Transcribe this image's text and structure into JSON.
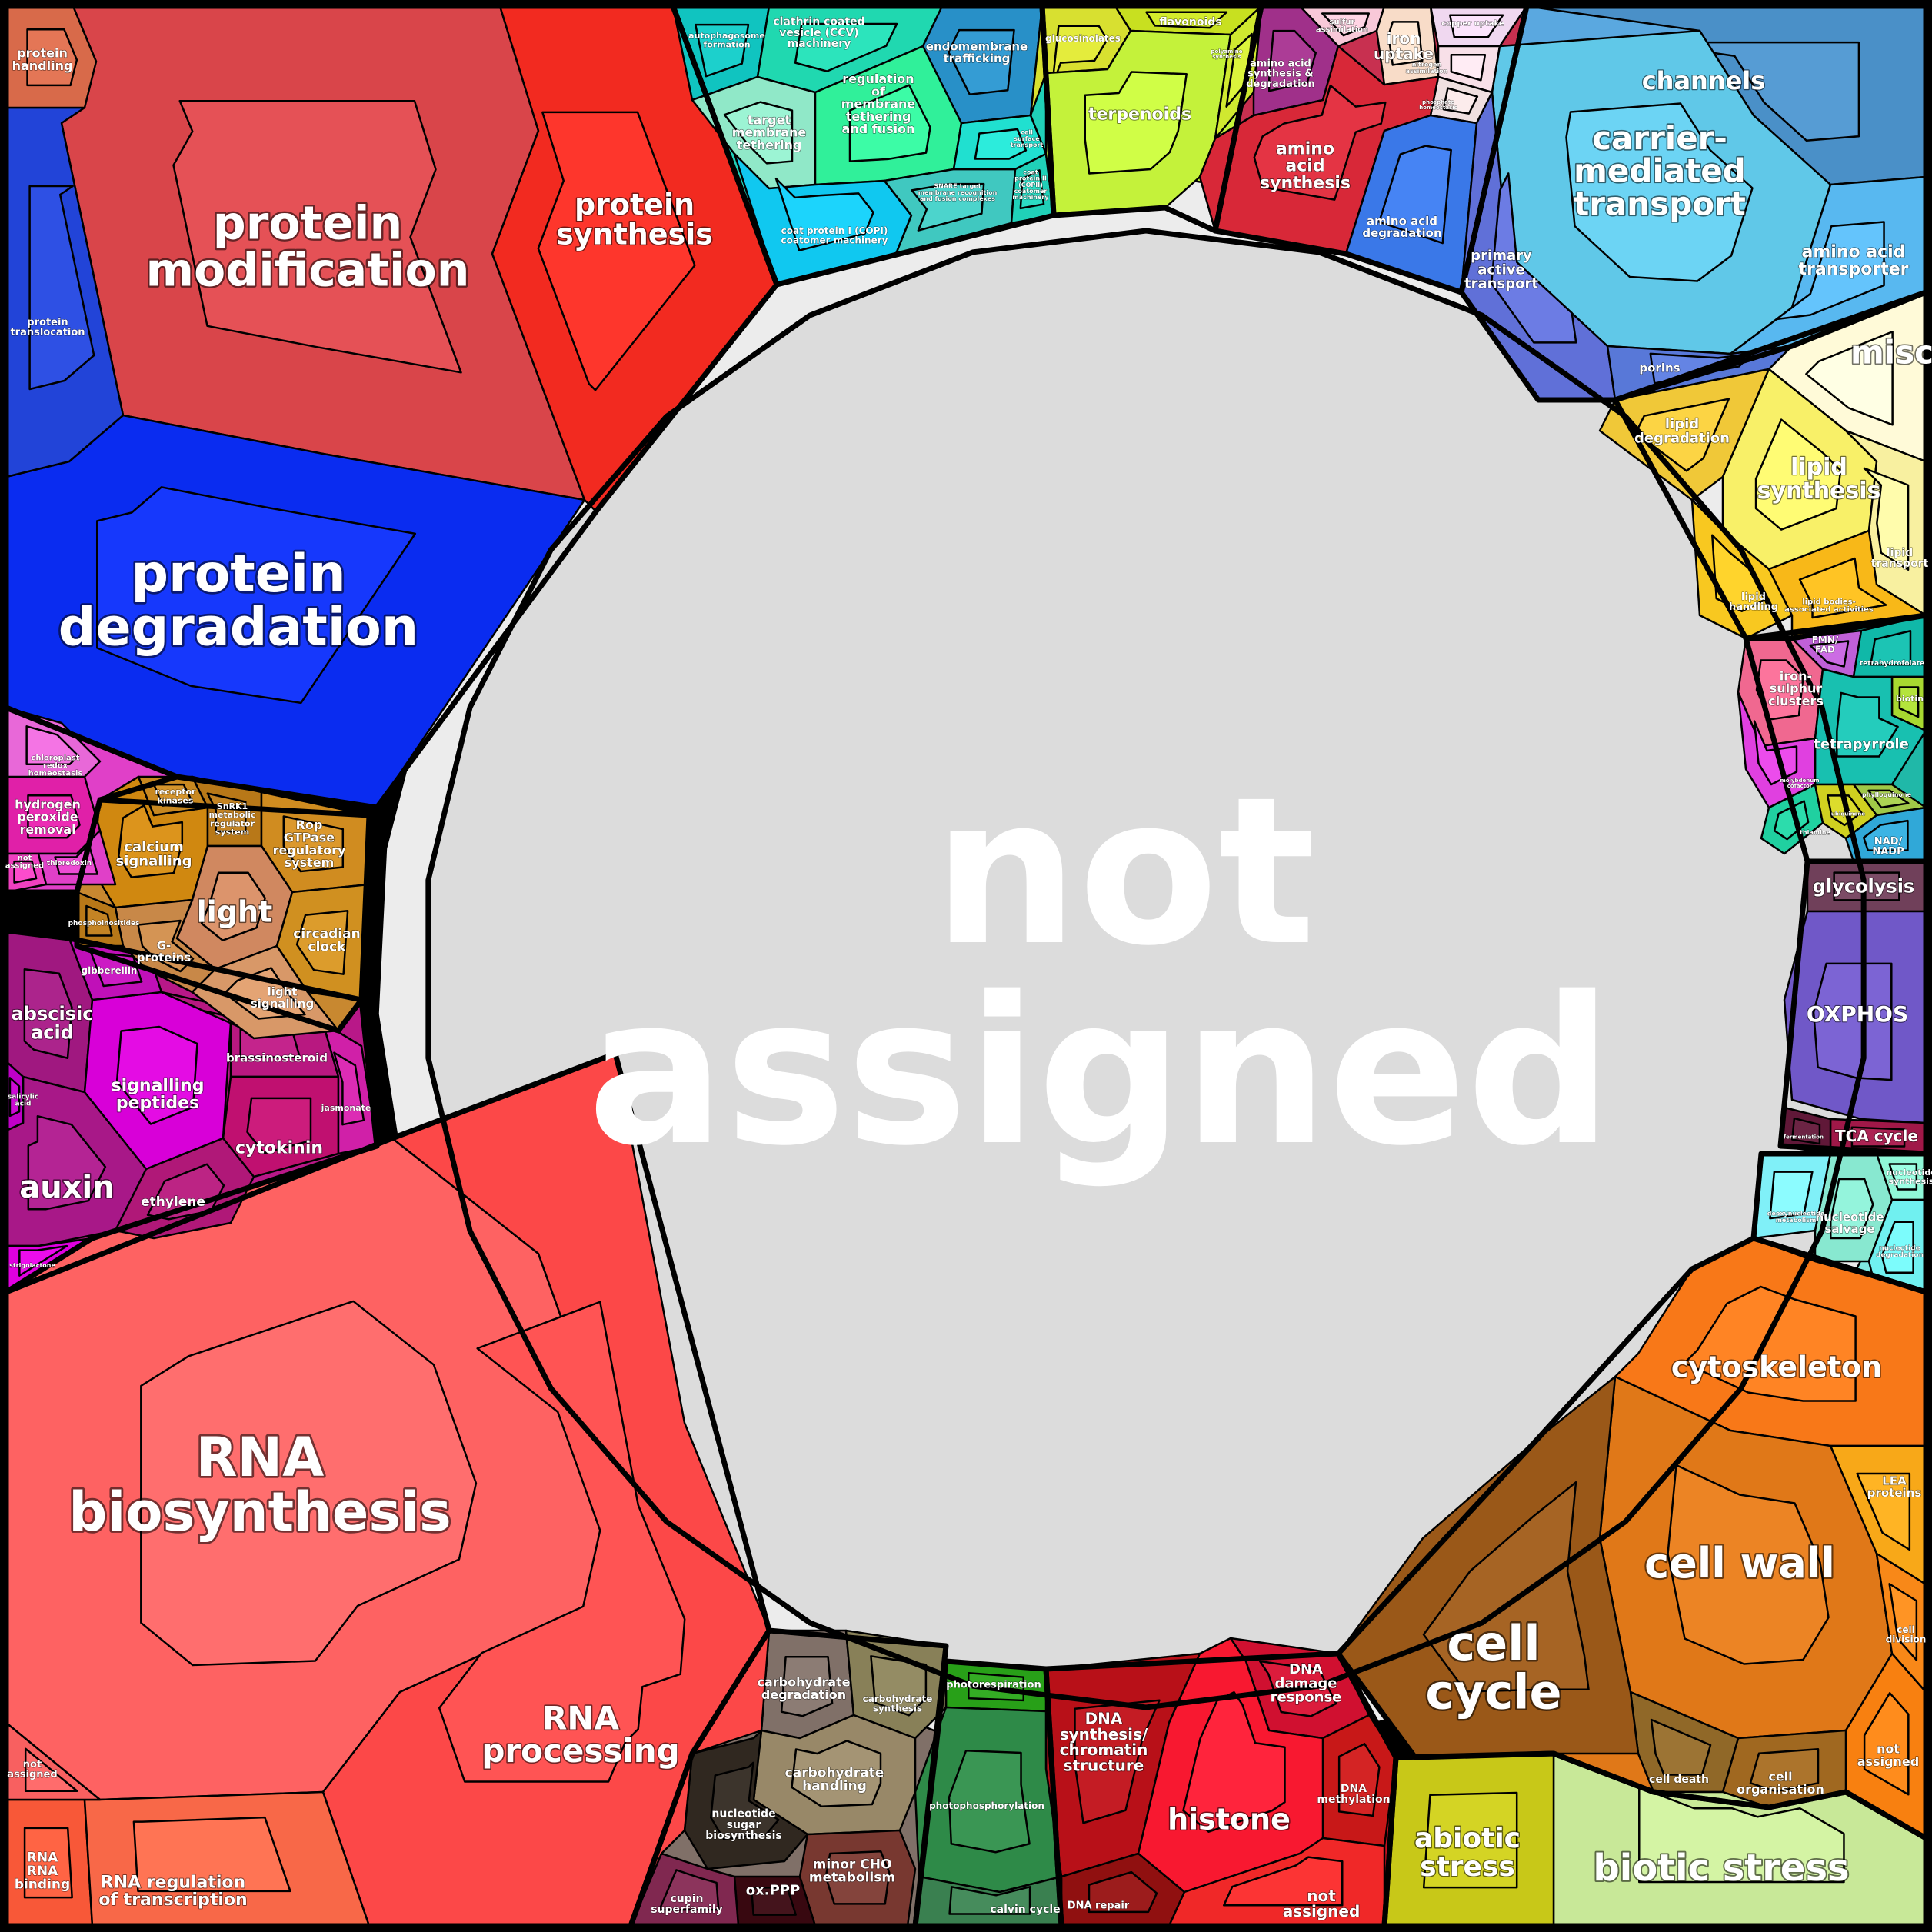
{
  "center": {
    "lines": [
      "not",
      "assigned"
    ],
    "color": "#dcdcdc"
  },
  "sectors": [
    {
      "id": "protein-modification",
      "lines": [
        "protein",
        "modification"
      ],
      "color": "#d9454a"
    },
    {
      "id": "protein-synthesis",
      "lines": [
        "protein",
        "synthesis"
      ],
      "color": "#f22a20"
    },
    {
      "id": "protein-degradation",
      "lines": [
        "protein",
        "degradation"
      ],
      "color": "#0a2cf0"
    },
    {
      "id": "protein-translocation",
      "lines": [
        "protein",
        "translocation"
      ],
      "color": "#2244d8"
    },
    {
      "id": "protein-handling",
      "lines": [
        "protein",
        "handling"
      ],
      "color": "#d86a4a"
    },
    {
      "id": "autophagosome-formation",
      "lines": [
        "autophagosome",
        "formation"
      ],
      "color": "#10c4c0"
    },
    {
      "id": "clathrin-coated-vesicle",
      "lines": [
        "clathrin coated",
        "vesicle (CCV)",
        "machinery"
      ],
      "color": "#20d8b0"
    },
    {
      "id": "endomembrane-trafficking",
      "lines": [
        "endomembrane",
        "trafficking"
      ],
      "color": "#2890c8"
    },
    {
      "id": "target-membrane-tethering",
      "lines": [
        "target",
        "membrane",
        "tethering"
      ],
      "color": "#90e8c8"
    },
    {
      "id": "regulation-of-membrane-tethering",
      "lines": [
        "regulation",
        "of",
        "membrane",
        "tethering",
        "and fusion"
      ],
      "color": "#30f09a"
    },
    {
      "id": "coat-protein-copi",
      "lines": [
        "coat protein I (COPI)",
        "coatomer machinery"
      ],
      "color": "#10c8f0"
    },
    {
      "id": "snare-target-membrane",
      "lines": [
        "SNARE target",
        "membrane recognition",
        "and fusion complexes"
      ],
      "color": "#40c8c0"
    },
    {
      "id": "cell-surface-transport",
      "lines": [
        "cell",
        "surface",
        "transport"
      ],
      "color": "#20e0d0"
    },
    {
      "id": "coat-protein-copii",
      "lines": [
        "coat",
        "protein II",
        "(COPII)",
        "coatomer",
        "machinery"
      ],
      "color": "#20d0b8"
    },
    {
      "id": "glucosinolates",
      "lines": [
        "glucosinolates"
      ],
      "color": "#d8e030"
    },
    {
      "id": "flavonoids",
      "lines": [
        "flavonoids"
      ],
      "color": "#c8e020"
    },
    {
      "id": "terpenoids",
      "lines": [
        "terpenoids"
      ],
      "color": "#c4f23a"
    },
    {
      "id": "polyamine-synthesis",
      "lines": [
        "polyamine",
        "synthesis"
      ],
      "color": "#d0e830"
    },
    {
      "id": "sulfur-assimilation",
      "lines": [
        "sulfur",
        "assimilation"
      ],
      "color": "#f8c8d8"
    },
    {
      "id": "iron-uptake",
      "lines": [
        "iron",
        "uptake"
      ],
      "color": "#f8dcc8"
    },
    {
      "id": "copper-uptake",
      "lines": [
        "copper uptake"
      ],
      "color": "#f0d8f0"
    },
    {
      "id": "nitrogen-assimilation",
      "lines": [
        "nitrogen",
        "assimilation"
      ],
      "color": "#f8e0e8"
    },
    {
      "id": "phosphate-homeostasis",
      "lines": [
        "phosphate",
        "homeostasis"
      ],
      "color": "#f0e0e0"
    },
    {
      "id": "amino-acid-synthesis-degradation",
      "lines": [
        "amino acid",
        "synthesis &",
        "degradation"
      ],
      "color": "#a0308a"
    },
    {
      "id": "amino-acid-synthesis",
      "lines": [
        "amino",
        "acid",
        "synthesis"
      ],
      "color": "#d82838"
    },
    {
      "id": "amino-acid-degradation",
      "lines": [
        "amino acid",
        "degradation"
      ],
      "color": "#3a78e8"
    },
    {
      "id": "channels",
      "lines": [
        "channels"
      ],
      "color": "#4a90c8"
    },
    {
      "id": "carrier-mediated-transport",
      "lines": [
        "carrier-",
        "mediated",
        "transport"
      ],
      "color": "#60c8e8"
    },
    {
      "id": "primary-active-transport",
      "lines": [
        "primary",
        "active",
        "transport"
      ],
      "color": "#6070d8"
    },
    {
      "id": "amino-acid-transporter",
      "lines": [
        "amino acid",
        "transporter"
      ],
      "color": "#58b8f0"
    },
    {
      "id": "porins",
      "lines": [
        "porins"
      ],
      "color": "#5878d8"
    },
    {
      "id": "misc",
      "lines": [
        "misc"
      ],
      "color": "#fffad8"
    },
    {
      "id": "lipid-degradation",
      "lines": [
        "lipid",
        "degradation"
      ],
      "color": "#f0c838"
    },
    {
      "id": "lipid-synthesis",
      "lines": [
        "lipid",
        "synthesis"
      ],
      "color": "#f8f068"
    },
    {
      "id": "lipid-transport",
      "lines": [
        "lipid",
        "transport"
      ],
      "color": "#f8f0a0"
    },
    {
      "id": "lipid-handling",
      "lines": [
        "lipid",
        "handling"
      ],
      "color": "#f8c820"
    },
    {
      "id": "lipid-bodies",
      "lines": [
        "lipid bodies-",
        "associated activities"
      ],
      "color": "#f8b818"
    },
    {
      "id": "iron-sulphur-clusters",
      "lines": [
        "iron-",
        "sulphur",
        "clusters"
      ],
      "color": "#f06890"
    },
    {
      "id": "fmn-fad",
      "lines": [
        "FMN/",
        "FAD"
      ],
      "color": "#c060d8"
    },
    {
      "id": "tetrahydrofolate",
      "lines": [
        "tetrahydrofolate"
      ],
      "color": "#10b8a8"
    },
    {
      "id": "biotin",
      "lines": [
        "biotin"
      ],
      "color": "#a8d830"
    },
    {
      "id": "tetrapyrrole",
      "lines": [
        "tetrapyrrole"
      ],
      "color": "#18c0b0"
    },
    {
      "id": "phylloquinone",
      "lines": [
        "phylloquinone"
      ],
      "color": "#a0c848"
    },
    {
      "id": "thiamine",
      "lines": [
        "thiamine"
      ],
      "color": "#20d0a0"
    },
    {
      "id": "ubiquinone",
      "lines": [
        "ubiquinone"
      ],
      "color": "#d0d020"
    },
    {
      "id": "nad-nadp",
      "lines": [
        "NAD/",
        "NADP"
      ],
      "color": "#30a8d8"
    },
    {
      "id": "molybdenum-cofactor",
      "lines": [
        "molybdenum",
        "cofactor"
      ],
      "color": "#e040e0"
    },
    {
      "id": "glycolysis",
      "lines": [
        "glycolysis"
      ],
      "color": "#70405a"
    },
    {
      "id": "oxphos",
      "lines": [
        "OXPHOS"
      ],
      "color": "#7058c8"
    },
    {
      "id": "tca-cycle",
      "lines": [
        "TCA cycle"
      ],
      "color": "#a01848"
    },
    {
      "id": "fermentation",
      "lines": [
        "fermentation"
      ],
      "color": "#601838"
    },
    {
      "id": "nucleotide-synthesis",
      "lines": [
        "nucleotide",
        "synthesis"
      ],
      "color": "#90f8d8"
    },
    {
      "id": "nucleotide-salvage",
      "lines": [
        "nucleotide",
        "salvage"
      ],
      "color": "#88e8d0"
    },
    {
      "id": "nucleotide-degradation",
      "lines": [
        "nucleotide",
        "degradation"
      ],
      "color": "#70f0f0"
    },
    {
      "id": "deoxynucleotide-metabolism",
      "lines": [
        "deoxynucleotide",
        "metabolism"
      ],
      "color": "#80f0f8"
    },
    {
      "id": "cytoskeleton",
      "lines": [
        "cytoskeleton"
      ],
      "color": "#f87818"
    },
    {
      "id": "lea-proteins",
      "lines": [
        "LEA",
        "proteins"
      ],
      "color": "#f8a818"
    },
    {
      "id": "cell-wall",
      "lines": [
        "cell wall"
      ],
      "color": "#e07818"
    },
    {
      "id": "cell-division",
      "lines": [
        "cell",
        "division"
      ],
      "color": "#f88818"
    },
    {
      "id": "not-assigned-right",
      "lines": [
        "not",
        "assigned"
      ],
      "color": "#f88010"
    },
    {
      "id": "cell-organisation",
      "lines": [
        "cell",
        "organisation"
      ],
      "color": "#a06820"
    },
    {
      "id": "cell-death",
      "lines": [
        "cell death"
      ],
      "color": "#906828"
    },
    {
      "id": "cell-cycle",
      "lines": [
        "cell",
        "cycle"
      ],
      "color": "#9a5818"
    },
    {
      "id": "biotic-stress",
      "lines": [
        "biotic stress"
      ],
      "color": "#c8e898"
    },
    {
      "id": "abiotic-stress",
      "lines": [
        "abiotic",
        "stress"
      ],
      "color": "#c8c818"
    },
    {
      "id": "dna-damage-response",
      "lines": [
        "DNA",
        "damage",
        "response"
      ],
      "color": "#d01030"
    },
    {
      "id": "dna-synthesis-chromatin",
      "lines": [
        "DNA",
        "synthesis/",
        "chromatin",
        "structure"
      ],
      "color": "#b81018"
    },
    {
      "id": "dna-methylation",
      "lines": [
        "DNA",
        "methylation"
      ],
      "color": "#c81818"
    },
    {
      "id": "histone",
      "lines": [
        "histone"
      ],
      "color": "#f81830"
    },
    {
      "id": "dna-repair",
      "lines": [
        "DNA repair"
      ],
      "color": "#901010"
    },
    {
      "id": "not-assigned-dna",
      "lines": [
        "not",
        "assigned"
      ],
      "color": "#f02828"
    },
    {
      "id": "photorespiration",
      "lines": [
        "photorespiration"
      ],
      "color": "#28a018"
    },
    {
      "id": "photophosphorylation",
      "lines": [
        "photophosphorylation"
      ],
      "color": "#2e8a48"
    },
    {
      "id": "calvin-cycle",
      "lines": [
        "calvin cycle"
      ],
      "color": "#3a8050"
    },
    {
      "id": "carbohydrate-degradation",
      "lines": [
        "carbohydrate",
        "degradation"
      ],
      "color": "#807068"
    },
    {
      "id": "carbohydrate-synthesis",
      "lines": [
        "carbohydrate",
        "synthesis"
      ],
      "color": "#888058"
    },
    {
      "id": "carbohydrate-handling",
      "lines": [
        "carbohydrate",
        "handling"
      ],
      "color": "#988868"
    },
    {
      "id": "nucleotide-sugar-biosynthesis",
      "lines": [
        "nucleotide",
        "sugar",
        "biosynthesis"
      ],
      "color": "#302820"
    },
    {
      "id": "minor-cho-metabolism",
      "lines": [
        "minor CHO",
        "metabolism"
      ],
      "color": "#783830"
    },
    {
      "id": "ox-ppp",
      "lines": [
        "ox.PPP"
      ],
      "color": "#380810"
    },
    {
      "id": "cupin-superfamily",
      "lines": [
        "cupin",
        "superfamily"
      ],
      "color": "#802850"
    },
    {
      "id": "rna-biosynthesis",
      "lines": [
        "RNA",
        "biosynthesis"
      ],
      "color": "#fe6262"
    },
    {
      "id": "rna-processing",
      "lines": [
        "RNA",
        "processing"
      ],
      "color": "#fc4848"
    },
    {
      "id": "rna-rna-binding",
      "lines": [
        "RNA",
        "RNA",
        "binding"
      ],
      "color": "#f85838"
    },
    {
      "id": "rna-regulation-of-transcription",
      "lines": [
        "RNA regulation",
        "of transcription"
      ],
      "color": "#f86848"
    },
    {
      "id": "not-assigned-rna",
      "lines": [
        "not",
        "assigned"
      ],
      "color": "#f86060"
    },
    {
      "id": "abscisic-acid",
      "lines": [
        "abscisic",
        "acid"
      ],
      "color": "#a01880"
    },
    {
      "id": "signalling-peptides",
      "lines": [
        "signalling",
        "peptides"
      ],
      "color": "#d800d8"
    },
    {
      "id": "brassinosteroid",
      "lines": [
        "brassinosteroid"
      ],
      "color": "#b81880"
    },
    {
      "id": "cytokinin",
      "lines": [
        "cytokinin"
      ],
      "color": "#c01070"
    },
    {
      "id": "jasmonate",
      "lines": [
        "jasmonate"
      ],
      "color": "#d020a8"
    },
    {
      "id": "auxin",
      "lines": [
        "auxin"
      ],
      "color": "#a81888"
    },
    {
      "id": "ethylene",
      "lines": [
        "ethylene"
      ],
      "color": "#b01878"
    },
    {
      "id": "gibberellin",
      "lines": [
        "gibberellin"
      ],
      "color": "#c010b8"
    },
    {
      "id": "salicylic-acid",
      "lines": [
        "salicylic",
        "acid"
      ],
      "color": "#c000c8"
    },
    {
      "id": "strigolactone",
      "lines": [
        "strigolactone"
      ],
      "color": "#e000e0"
    },
    {
      "id": "calcium-signalling",
      "lines": [
        "calcium",
        "signalling"
      ],
      "color": "#d08810"
    },
    {
      "id": "receptor-kinases",
      "lines": [
        "receptor",
        "kinases"
      ],
      "color": "#c88820"
    },
    {
      "id": "snrk1",
      "lines": [
        "SnRK1",
        "metabolic",
        "regulator",
        "system"
      ],
      "color": "#b87818"
    },
    {
      "id": "rop-gtpase",
      "lines": [
        "Rop",
        "GTPase",
        "regulatory",
        "system"
      ],
      "color": "#d08c20"
    },
    {
      "id": "light",
      "lines": [
        "light"
      ],
      "color": "#d08860"
    },
    {
      "id": "circadian-clock",
      "lines": [
        "circadian",
        "clock"
      ],
      "color": "#d09020"
    },
    {
      "id": "g-proteins",
      "lines": [
        "G-",
        "proteins"
      ],
      "color": "#c88848"
    },
    {
      "id": "light-signalling",
      "lines": [
        "light",
        "signalling"
      ],
      "color": "#d89868"
    },
    {
      "id": "phosphoinositides",
      "lines": [
        "phosphoinositides"
      ],
      "color": "#b87818"
    },
    {
      "id": "hydrogen-peroxide-removal",
      "lines": [
        "hydrogen",
        "peroxide",
        "removal"
      ],
      "color": "#e020a8"
    },
    {
      "id": "chloroplast-redox-homeostasis",
      "lines": [
        "chloroplast",
        "redox",
        "homeostasis"
      ],
      "color": "#e868d8"
    },
    {
      "id": "not-assigned-redox",
      "lines": [
        "not",
        "assigned"
      ],
      "color": "#f040c0"
    },
    {
      "id": "thioredoxin",
      "lines": [
        "thioredoxin"
      ],
      "color": "#e040c8"
    }
  ]
}
